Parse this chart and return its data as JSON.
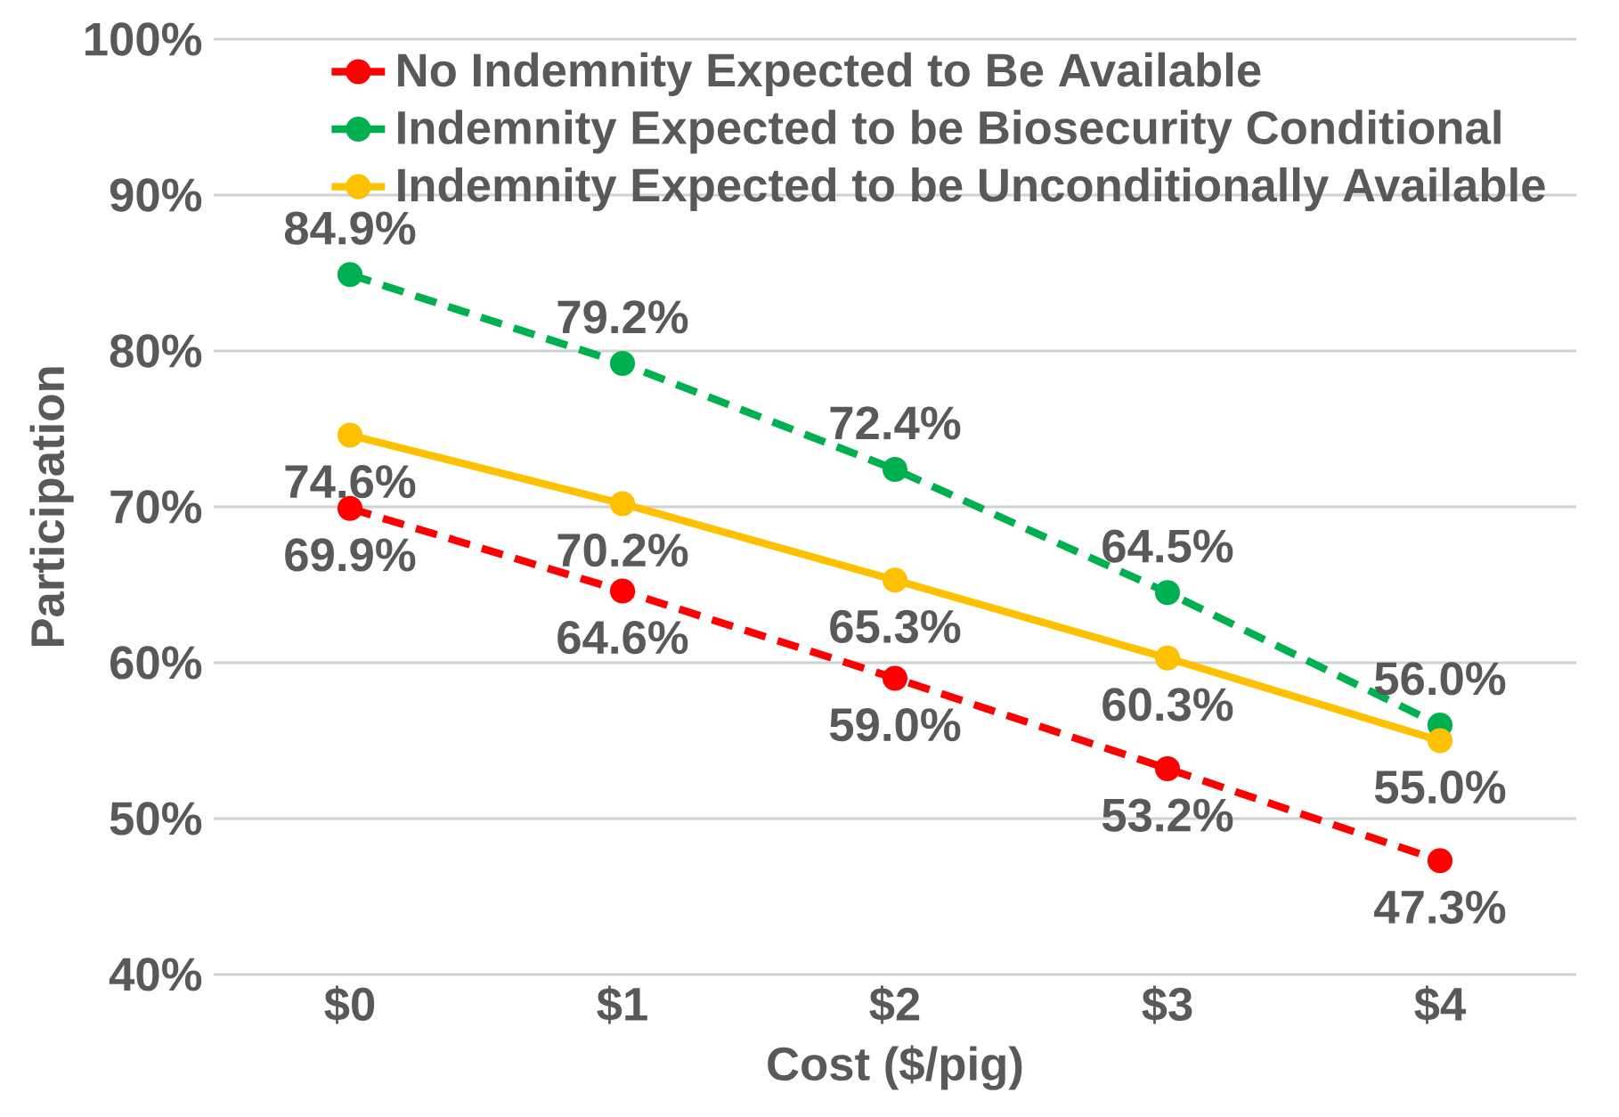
{
  "chart_data": {
    "type": "line",
    "xlabel": "Cost ($/pig)",
    "ylabel": "Participation",
    "categories": [
      "$0",
      "$1",
      "$2",
      "$3",
      "$4"
    ],
    "ylim": [
      40,
      100
    ],
    "yticks": [
      {
        "value": 40,
        "label": "40%"
      },
      {
        "value": 50,
        "label": "50%"
      },
      {
        "value": 60,
        "label": "60%"
      },
      {
        "value": 70,
        "label": "70%"
      },
      {
        "value": 80,
        "label": "80%"
      },
      {
        "value": 90,
        "label": "90%"
      },
      {
        "value": 100,
        "label": "100%"
      }
    ],
    "grid": "y",
    "legend": "top right",
    "marker": "circle",
    "series": [
      {
        "name": "No Indemnity Expected to Be Available",
        "color": "#ff0000",
        "line_style": "dashed",
        "values": [
          69.9,
          64.6,
          59.0,
          53.2,
          47.3
        ],
        "value_labels": [
          "69.9%",
          "64.6%",
          "59.0%",
          "53.2%",
          "47.3%"
        ]
      },
      {
        "name": "Indemnity Expected to be Biosecurity Conditional",
        "color": "#00b050",
        "line_style": "dashed",
        "values": [
          84.9,
          79.2,
          72.4,
          64.5,
          56.0
        ],
        "value_labels": [
          "84.9%",
          "79.2%",
          "72.4%",
          "64.5%",
          "56.0%"
        ]
      },
      {
        "name": "Indemnity Expected to be Unconditionally Available",
        "color": "#ffc000",
        "line_style": "solid",
        "values": [
          74.6,
          70.2,
          65.3,
          60.3,
          55.0
        ],
        "value_labels": [
          "74.6%",
          "70.2%",
          "65.3%",
          "60.3%",
          "55.0%"
        ]
      }
    ]
  }
}
